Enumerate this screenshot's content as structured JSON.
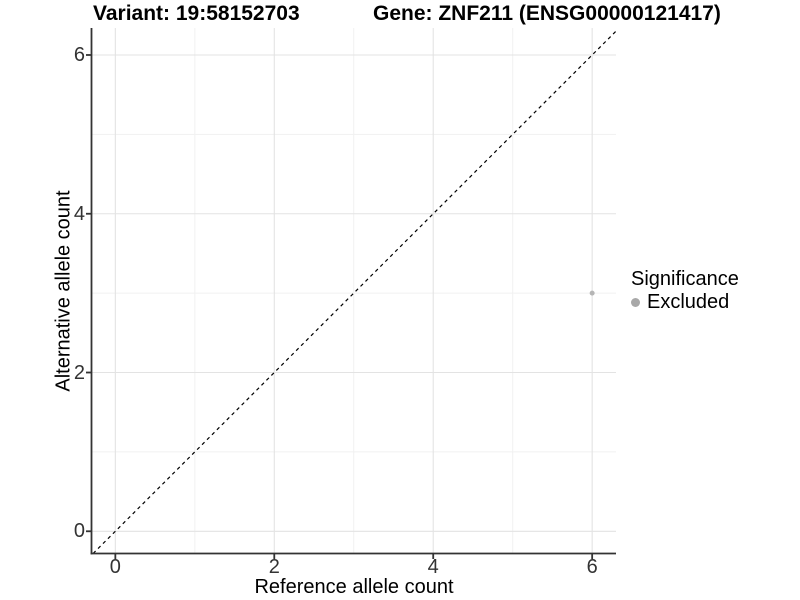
{
  "header": {
    "variant_title": "Variant: 19:58152703",
    "gene_title": "Gene: ZNF211 (ENSG00000121417)"
  },
  "chart_data": {
    "type": "scatter",
    "title_left": "Variant: 19:58152703",
    "title_right": "Gene: ZNF211 (ENSG00000121417)",
    "xlabel": "Reference allele count",
    "ylabel": "Alternative allele count",
    "xlim": [
      -0.3,
      6.3
    ],
    "ylim": [
      -0.28,
      6.34
    ],
    "x_ticks": [
      0,
      2,
      4,
      6
    ],
    "y_ticks": [
      0,
      2,
      4,
      6
    ],
    "x_minor_ticks": [
      1,
      3,
      5
    ],
    "y_minor_ticks": [
      1,
      3,
      5
    ],
    "grid": "major_and_minor",
    "reference_line": {
      "equation": "y = x",
      "style": "dashed",
      "color": "#000000"
    },
    "series": [
      {
        "name": "Excluded",
        "color": "#b5b5b5",
        "points": [
          {
            "x": 6,
            "y": 3
          }
        ]
      }
    ],
    "legend": {
      "title": "Significance",
      "position": "right",
      "items": [
        {
          "label": "Excluded",
          "color": "#a8a8a8"
        }
      ]
    },
    "style_colors": {
      "axis_line": "#333333",
      "tick_label": "#333333",
      "grid_major": "#e3e3e3",
      "grid_minor": "#f1f1f1"
    }
  }
}
